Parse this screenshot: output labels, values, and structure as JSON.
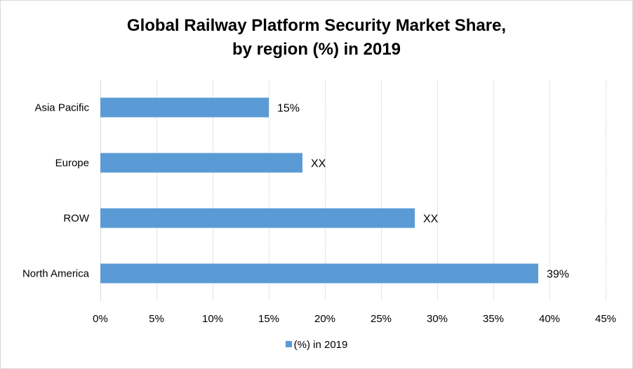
{
  "chart_data": {
    "type": "bar",
    "orientation": "horizontal",
    "title": "Global Railway Platform Security Market Share, by region (%) in 2019",
    "title_lines": [
      "Global Railway Platform Security Market Share,",
      "by region (%) in 2019"
    ],
    "categories": [
      "Asia Pacific",
      "Europe",
      "ROW",
      "North America"
    ],
    "series": [
      {
        "name": "(%) in 2019",
        "values": [
          15,
          18,
          28,
          39
        ],
        "data_labels": [
          "15%",
          "XX",
          "XX",
          "39%"
        ],
        "color": "#5b9bd5"
      }
    ],
    "xlabel": "",
    "ylabel": "",
    "xlim": [
      0,
      45
    ],
    "x_ticks": [
      0,
      5,
      10,
      15,
      20,
      25,
      30,
      35,
      40,
      45
    ],
    "x_tick_labels": [
      "0%",
      "5%",
      "10%",
      "15%",
      "20%",
      "25%",
      "30%",
      "35%",
      "40%",
      "45%"
    ],
    "grid": true,
    "legend": {
      "position": "bottom",
      "entries": [
        "(%) in 2019"
      ]
    }
  }
}
